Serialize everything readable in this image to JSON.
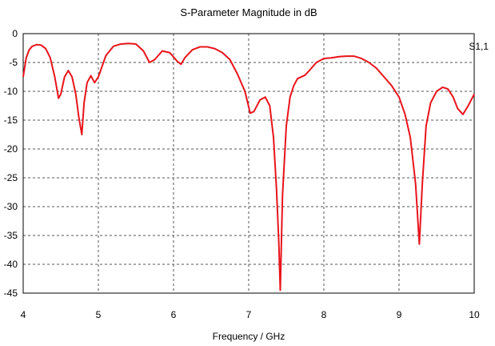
{
  "chart_data": {
    "type": "line",
    "title": "S-Parameter Magnitude in dB",
    "xlabel": "Frequency / GHz",
    "ylabel": "",
    "xlim": [
      4,
      10
    ],
    "ylim": [
      -45,
      0
    ],
    "x_ticks": [
      4,
      5,
      6,
      7,
      8,
      9,
      10
    ],
    "y_ticks": [
      0,
      -5,
      -10,
      -15,
      -20,
      -25,
      -30,
      -35,
      -40,
      -45
    ],
    "grid": "dashed",
    "legend_position": "top-right",
    "series": [
      {
        "name": "S1,1",
        "color": "#e8141b",
        "points": [
          [
            4.0,
            -7.5
          ],
          [
            4.04,
            -4.2
          ],
          [
            4.08,
            -2.8
          ],
          [
            4.12,
            -2.2
          ],
          [
            4.18,
            -1.9
          ],
          [
            4.24,
            -2.0
          ],
          [
            4.3,
            -2.6
          ],
          [
            4.36,
            -4.2
          ],
          [
            4.42,
            -7.5
          ],
          [
            4.47,
            -11.2
          ],
          [
            4.5,
            -10.5
          ],
          [
            4.55,
            -7.5
          ],
          [
            4.6,
            -6.4
          ],
          [
            4.65,
            -7.5
          ],
          [
            4.7,
            -10.5
          ],
          [
            4.74,
            -14.5
          ],
          [
            4.78,
            -17.5
          ],
          [
            4.81,
            -12.0
          ],
          [
            4.85,
            -8.5
          ],
          [
            4.9,
            -7.3
          ],
          [
            4.95,
            -8.5
          ],
          [
            5.0,
            -7.5
          ],
          [
            5.1,
            -3.8
          ],
          [
            5.2,
            -2.2
          ],
          [
            5.3,
            -1.8
          ],
          [
            5.4,
            -1.7
          ],
          [
            5.5,
            -1.8
          ],
          [
            5.6,
            -3.0
          ],
          [
            5.68,
            -5.0
          ],
          [
            5.75,
            -4.5
          ],
          [
            5.85,
            -3.0
          ],
          [
            5.95,
            -3.3
          ],
          [
            6.05,
            -4.8
          ],
          [
            6.1,
            -5.3
          ],
          [
            6.15,
            -4.2
          ],
          [
            6.25,
            -2.8
          ],
          [
            6.35,
            -2.3
          ],
          [
            6.45,
            -2.3
          ],
          [
            6.55,
            -2.6
          ],
          [
            6.65,
            -3.3
          ],
          [
            6.75,
            -4.5
          ],
          [
            6.85,
            -7.0
          ],
          [
            6.95,
            -10.0
          ],
          [
            7.02,
            -13.8
          ],
          [
            7.07,
            -13.5
          ],
          [
            7.15,
            -11.5
          ],
          [
            7.22,
            -11.0
          ],
          [
            7.28,
            -12.5
          ],
          [
            7.33,
            -18.0
          ],
          [
            7.37,
            -27.0
          ],
          [
            7.4,
            -36.0
          ],
          [
            7.42,
            -44.5
          ],
          [
            7.45,
            -28.0
          ],
          [
            7.5,
            -16.0
          ],
          [
            7.55,
            -11.0
          ],
          [
            7.6,
            -9.0
          ],
          [
            7.65,
            -7.8
          ],
          [
            7.75,
            -7.2
          ],
          [
            7.82,
            -6.2
          ],
          [
            7.9,
            -5.0
          ],
          [
            8.0,
            -4.3
          ],
          [
            8.1,
            -4.2
          ],
          [
            8.2,
            -4.0
          ],
          [
            8.3,
            -3.9
          ],
          [
            8.4,
            -3.9
          ],
          [
            8.5,
            -4.3
          ],
          [
            8.6,
            -5.0
          ],
          [
            8.7,
            -6.0
          ],
          [
            8.8,
            -7.5
          ],
          [
            8.9,
            -9.0
          ],
          [
            9.0,
            -11.0
          ],
          [
            9.08,
            -14.0
          ],
          [
            9.15,
            -18.0
          ],
          [
            9.22,
            -26.0
          ],
          [
            9.27,
            -36.5
          ],
          [
            9.31,
            -26.0
          ],
          [
            9.36,
            -16.0
          ],
          [
            9.42,
            -12.0
          ],
          [
            9.5,
            -10.0
          ],
          [
            9.58,
            -9.3
          ],
          [
            9.65,
            -9.6
          ],
          [
            9.72,
            -11.0
          ],
          [
            9.78,
            -13.0
          ],
          [
            9.85,
            -14.0
          ],
          [
            9.92,
            -12.5
          ],
          [
            10.0,
            -10.5
          ]
        ]
      }
    ]
  }
}
